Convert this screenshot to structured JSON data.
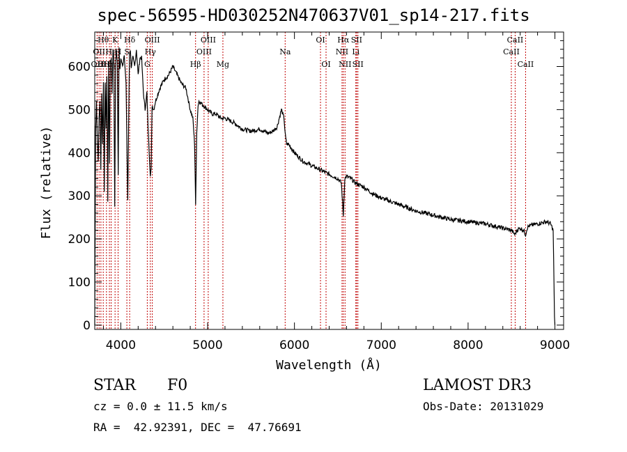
{
  "chart_data": {
    "type": "line",
    "title": "spec-56595-HD030252N470637V01_sp14-217.fits",
    "xlabel": "Wavelength (Å)",
    "ylabel": "Flux (relative)",
    "xlim": [
      3700,
      9100
    ],
    "ylim": [
      -10,
      680
    ],
    "xticks": [
      4000,
      5000,
      6000,
      7000,
      8000,
      9000
    ],
    "yticks": [
      0,
      100,
      200,
      300,
      400,
      500,
      600
    ],
    "series": [
      {
        "name": "spectrum",
        "x": [
          3700,
          3710,
          3720,
          3730,
          3740,
          3750,
          3760,
          3770,
          3780,
          3790,
          3800,
          3810,
          3820,
          3830,
          3840,
          3850,
          3860,
          3870,
          3880,
          3890,
          3900,
          3910,
          3920,
          3930,
          3940,
          3950,
          3960,
          3970,
          3980,
          3990,
          4000,
          4020,
          4040,
          4060,
          4080,
          4100,
          4110,
          4120,
          4140,
          4160,
          4180,
          4200,
          4220,
          4240,
          4260,
          4280,
          4300,
          4320,
          4340,
          4350,
          4360,
          4380,
          4400,
          4450,
          4500,
          4550,
          4600,
          4650,
          4700,
          4750,
          4800,
          4830,
          4850,
          4862,
          4875,
          4890,
          4900,
          4950,
          5000,
          5050,
          5100,
          5150,
          5200,
          5300,
          5400,
          5500,
          5600,
          5700,
          5750,
          5800,
          5850,
          5880,
          5895,
          5910,
          5930,
          5950,
          6000,
          6100,
          6200,
          6300,
          6400,
          6500,
          6540,
          6563,
          6580,
          6600,
          6650,
          6700,
          6800,
          6900,
          7000,
          7200,
          7400,
          7600,
          7800,
          8000,
          8200,
          8400,
          8500,
          8540,
          8560,
          8600,
          8640,
          8662,
          8680,
          8700,
          8800,
          8900,
          8950,
          8980,
          8995,
          9000
        ],
        "y": [
          0,
          450,
          520,
          430,
          380,
          480,
          520,
          360,
          540,
          420,
          560,
          310,
          560,
          460,
          580,
          290,
          600,
          380,
          610,
          620,
          540,
          640,
          620,
          270,
          600,
          640,
          610,
          350,
          640,
          590,
          620,
          600,
          630,
          560,
          290,
          630,
          640,
          600,
          620,
          600,
          640,
          580,
          620,
          620,
          540,
          500,
          540,
          430,
          350,
          360,
          510,
          500,
          520,
          550,
          570,
          580,
          600,
          580,
          560,
          550,
          500,
          480,
          420,
          280,
          450,
          510,
          520,
          510,
          500,
          490,
          490,
          480,
          480,
          470,
          455,
          450,
          455,
          445,
          450,
          460,
          500,
          480,
          440,
          420,
          420,
          415,
          400,
          380,
          370,
          360,
          350,
          340,
          330,
          255,
          340,
          345,
          340,
          330,
          320,
          305,
          295,
          280,
          265,
          255,
          245,
          240,
          235,
          225,
          220,
          210,
          220,
          225,
          220,
          210,
          225,
          230,
          235,
          240,
          235,
          220,
          20,
          0
        ]
      }
    ],
    "lines": [
      {
        "wave": 3727,
        "row": 2,
        "label": "OII"
      },
      {
        "wave": 3750,
        "row": 1,
        "label": "OII"
      },
      {
        "wave": 3771,
        "row": 2,
        "label": "H"
      },
      {
        "wave": 3798,
        "row": 0,
        "label": "Hθ"
      },
      {
        "wave": 3835,
        "row": 2,
        "label": "H"
      },
      {
        "wave": 3869,
        "row": 2,
        "label": "Hη"
      },
      {
        "wave": 3889,
        "row": 1,
        "label": "He"
      },
      {
        "wave": 3934,
        "row": 0,
        "label": "K"
      },
      {
        "wave": 3969,
        "row": 1,
        "label": "H"
      },
      {
        "wave": 4102,
        "row": 0,
        "label": "Hδ"
      },
      {
        "wave": 4070,
        "row": 1,
        "label": "S"
      },
      {
        "wave": 4305,
        "row": 2,
        "label": "G"
      },
      {
        "wave": 4340,
        "row": 1,
        "label": "Hγ"
      },
      {
        "wave": 4363,
        "row": 0,
        "label": "OIII"
      },
      {
        "wave": 4861,
        "row": 2,
        "label": "Hβ"
      },
      {
        "wave": 4959,
        "row": 1,
        "label": "OIII"
      },
      {
        "wave": 5007,
        "row": 0,
        "label": "OIII"
      },
      {
        "wave": 5176,
        "row": 2,
        "label": "Mg"
      },
      {
        "wave": 5893,
        "row": 1,
        "label": "Na"
      },
      {
        "wave": 6300,
        "row": 0,
        "label": "OI"
      },
      {
        "wave": 6364,
        "row": 2,
        "label": "OI"
      },
      {
        "wave": 6548,
        "row": 1,
        "label": "NII"
      },
      {
        "wave": 6563,
        "row": 0,
        "label": "Hα"
      },
      {
        "wave": 6583,
        "row": 2,
        "label": "NII"
      },
      {
        "wave": 6707,
        "row": 1,
        "label": "Li"
      },
      {
        "wave": 6716,
        "row": 0,
        "label": "SII"
      },
      {
        "wave": 6731,
        "row": 2,
        "label": "SII"
      },
      {
        "wave": 8498,
        "row": 1,
        "label": "CaII"
      },
      {
        "wave": 8542,
        "row": 0,
        "label": "CaII"
      },
      {
        "wave": 8662,
        "row": 2,
        "label": "CaII"
      }
    ]
  },
  "info": {
    "class": "STAR",
    "subclass": "F0",
    "cz": "cz = 0.0 ± 11.5 km/s",
    "coords": "RA =  42.92391, DEC =  47.76691",
    "survey": "LAMOST DR3",
    "obs_date": "Obs-Date: 20131029"
  }
}
